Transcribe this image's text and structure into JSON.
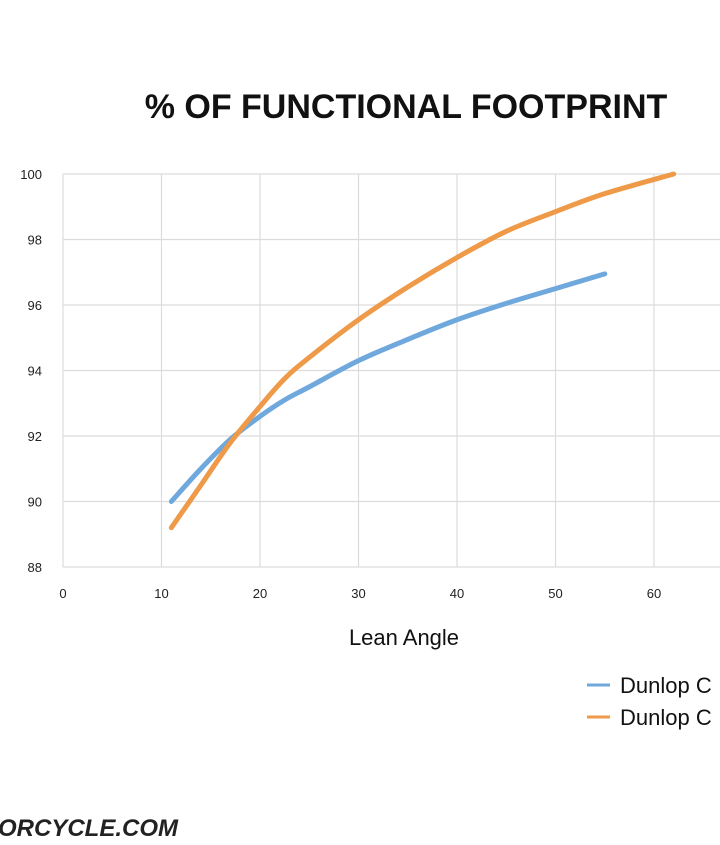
{
  "chart_data": {
    "type": "line",
    "title": "% OF FUNCTIONAL FOOTPRINT",
    "xlabel": "Lean Angle",
    "ylabel": "",
    "xlim": [
      0,
      60
    ],
    "ylim": [
      88,
      100
    ],
    "xticks": [
      0,
      10,
      20,
      30,
      40,
      50,
      60
    ],
    "yticks": [
      88,
      90,
      92,
      94,
      96,
      98,
      100
    ],
    "grid": true,
    "legend_position": "bottom-right",
    "series": [
      {
        "name": "Dunlop C",
        "color": "#6fa8dc",
        "x": [
          11,
          14,
          17,
          20,
          22.5,
          25,
          30,
          35,
          40,
          45,
          50,
          55
        ],
        "y": [
          90.0,
          91.0,
          91.9,
          92.6,
          93.1,
          93.5,
          94.3,
          94.95,
          95.55,
          96.05,
          96.5,
          96.95
        ]
      },
      {
        "name": "Dunlop C",
        "color": "#ee9a49",
        "x": [
          11,
          14,
          17,
          20,
          22.5,
          25,
          30,
          35,
          40,
          45,
          50,
          55,
          62
        ],
        "y": [
          89.2,
          90.5,
          91.8,
          92.9,
          93.75,
          94.4,
          95.55,
          96.55,
          97.45,
          98.25,
          98.85,
          99.4,
          100.0
        ]
      }
    ]
  },
  "watermark": "ORCYCLE.COM"
}
